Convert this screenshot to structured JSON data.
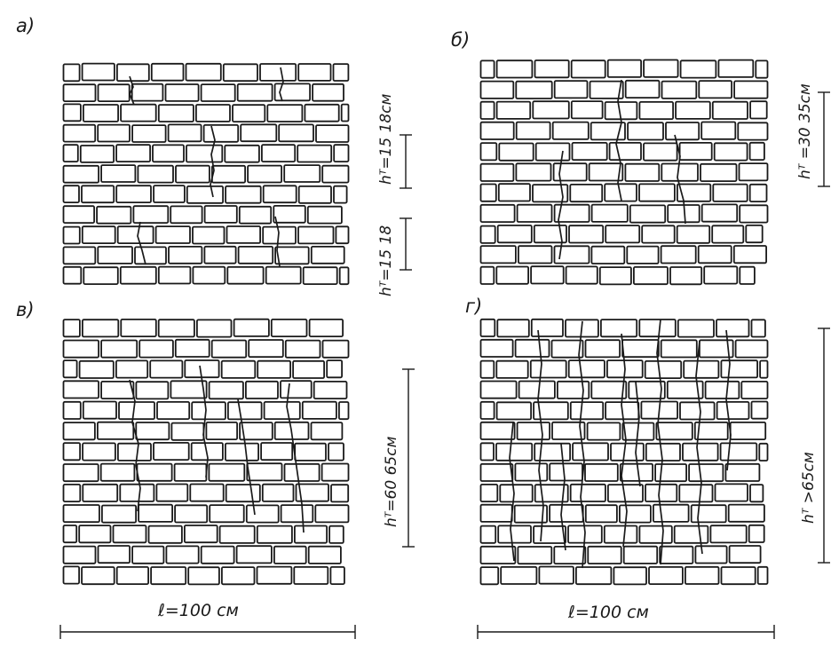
{
  "panels": [
    {
      "id": "a",
      "label": "а)",
      "ht_label": "hᵀ=15 18см",
      "ht_label_2": "hᵀ=15 18"
    },
    {
      "id": "b",
      "label": "б)",
      "ht_label": "hᵀ =30 35см"
    },
    {
      "id": "v",
      "label": "в)",
      "ht_label": "hᵀ=60 65см"
    },
    {
      "id": "g",
      "label": "г)",
      "ht_label": "hᵀ >65см"
    }
  ],
  "width_labels": {
    "left": "ℓ=100 см",
    "right": "ℓ=100 см"
  },
  "colors": {
    "ink": "#1a1a1a",
    "paper": "#ffffff"
  }
}
